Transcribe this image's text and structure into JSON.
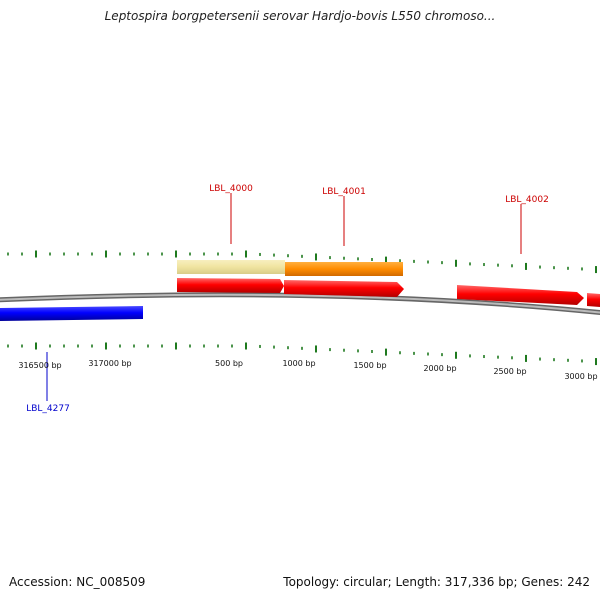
{
  "title": "Leptospira borgpetersenii serovar Hardjo-bovis L550 chromoso...",
  "footer": {
    "accession": "Accession: NC_008509",
    "summary": "Topology: circular; Length: 317,336 bp; Genes: 242"
  },
  "colors": {
    "forward_gene": "#ff0000",
    "reverse_gene": "#0000ff",
    "highlight_yellow": "#f0e4a0",
    "highlight_orange": "#ff8c00",
    "tick": "#1f7a1f",
    "backbone": "#888888"
  },
  "bp_labels": [
    "316500 bp",
    "317000 bp",
    "500 bp",
    "1000 bp",
    "1500 bp",
    "2000 bp",
    "2500 bp",
    "3000 bp"
  ],
  "gene_labels": [
    {
      "text": "LBL_4000",
      "strand": "forward"
    },
    {
      "text": "LBL_4001",
      "strand": "forward"
    },
    {
      "text": "LBL_4002",
      "strand": "forward"
    },
    {
      "text": "LBL_4277",
      "strand": "reverse"
    }
  ]
}
